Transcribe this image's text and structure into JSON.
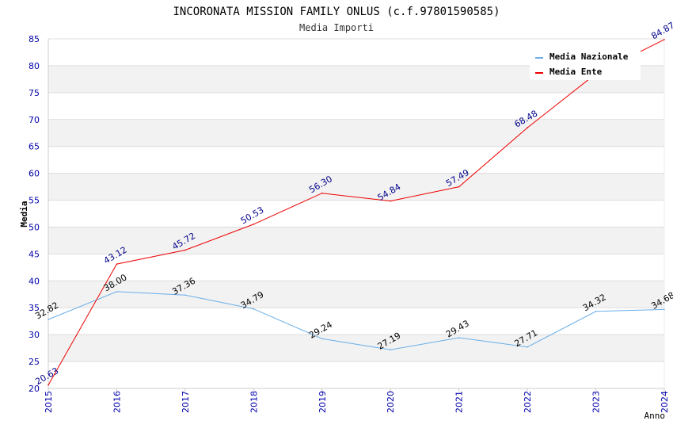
{
  "chart_data": {
    "type": "line",
    "title": "INCORONATA MISSION FAMILY ONLUS (c.f.97801590585)",
    "subtitle": "Media Importi",
    "xlabel": "Anno",
    "ylabel": "Media",
    "categories": [
      "2015",
      "2016",
      "2017",
      "2018",
      "2019",
      "2020",
      "2021",
      "2022",
      "2023",
      "2024"
    ],
    "ylim": [
      20,
      85
    ],
    "ytick_step": 5,
    "series": [
      {
        "name": "Media Nazionale",
        "color": "#6aaee8",
        "label_color": "#000000",
        "values": [
          32.82,
          38.0,
          37.36,
          34.79,
          29.24,
          27.19,
          29.43,
          27.71,
          34.32,
          34.68
        ],
        "labels": [
          "32.82",
          "38.00",
          "37.36",
          "34.79",
          "29.24",
          "27.19",
          "29.43",
          "27.71",
          "34.32",
          "34.68"
        ]
      },
      {
        "name": "Media Ente",
        "color": "#ee0000",
        "label_color": "#00008b",
        "values": [
          20.63,
          43.12,
          45.72,
          50.53,
          56.3,
          54.84,
          57.49,
          68.48,
          78.5,
          84.87
        ],
        "labels": [
          "20.63",
          "43.12",
          "45.72",
          "50.53",
          "56.30",
          "54.84",
          "57.49",
          "68.48",
          "",
          "84.87"
        ]
      }
    ],
    "legend_position": "top-right",
    "grid": true,
    "colors": {
      "band": "#f2f2f2",
      "grid": "#dddddd",
      "axis_text": "#0000aa",
      "title_text": "#000000"
    }
  }
}
